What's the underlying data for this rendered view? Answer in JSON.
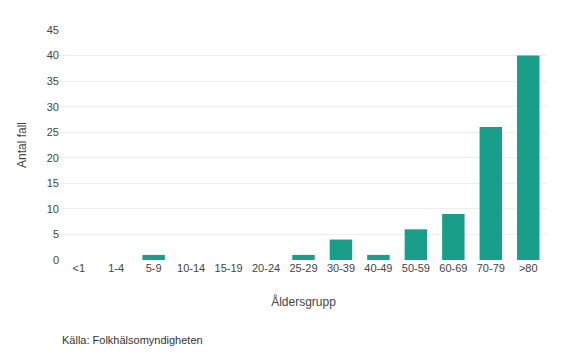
{
  "chart_data": {
    "type": "bar",
    "categories": [
      "<1",
      "1-4",
      "5-9",
      "10-14",
      "15-19",
      "20-24",
      "25-29",
      "30-39",
      "40-49",
      "50-59",
      "60-69",
      "70-79",
      ">80"
    ],
    "values": [
      0,
      0,
      1,
      0,
      0,
      0,
      1,
      4,
      1,
      6,
      9,
      26,
      40
    ],
    "color": "#1a9e8c",
    "xlabel": "Åldersgrupp",
    "ylabel": "Antal fall",
    "source": "Källa: Folkhälsomyndigheten",
    "ylim": [
      0,
      45
    ],
    "yticks": [
      0,
      5,
      10,
      15,
      20,
      25,
      30,
      35,
      40,
      45
    ],
    "grid": true
  }
}
